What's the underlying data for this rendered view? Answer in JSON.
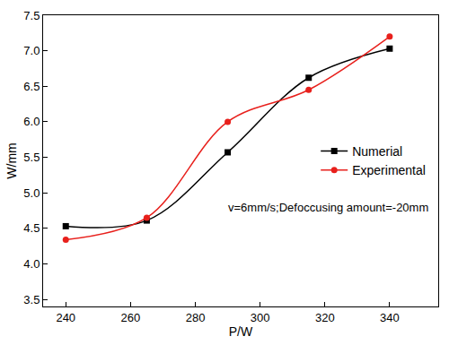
{
  "chart_data": {
    "type": "line",
    "x_label": "P/W",
    "y_label": "W/mm",
    "x": [
      240,
      265,
      290,
      315,
      340
    ],
    "series": [
      {
        "name": "Numerial",
        "color": "#000000",
        "marker": "square",
        "line_style": "spline",
        "values": [
          4.53,
          4.61,
          5.57,
          6.62,
          7.03
        ]
      },
      {
        "name": "Experimental",
        "color": "#e8201c",
        "marker": "circle",
        "line_style": "spline",
        "values": [
          4.34,
          4.65,
          6.0,
          6.45,
          7.2
        ]
      }
    ],
    "annotations": [
      "v=6mm/s;Defoccusing amount=-20mm"
    ],
    "xlim": [
      233,
      355
    ],
    "xticks": [
      240,
      260,
      280,
      300,
      320,
      340
    ],
    "ylim": [
      3.4,
      7.5
    ],
    "yticks": [
      3.5,
      4.0,
      4.5,
      5.0,
      5.5,
      6.0,
      6.5,
      7.0,
      7.5
    ],
    "grid": false,
    "legend": "right"
  }
}
